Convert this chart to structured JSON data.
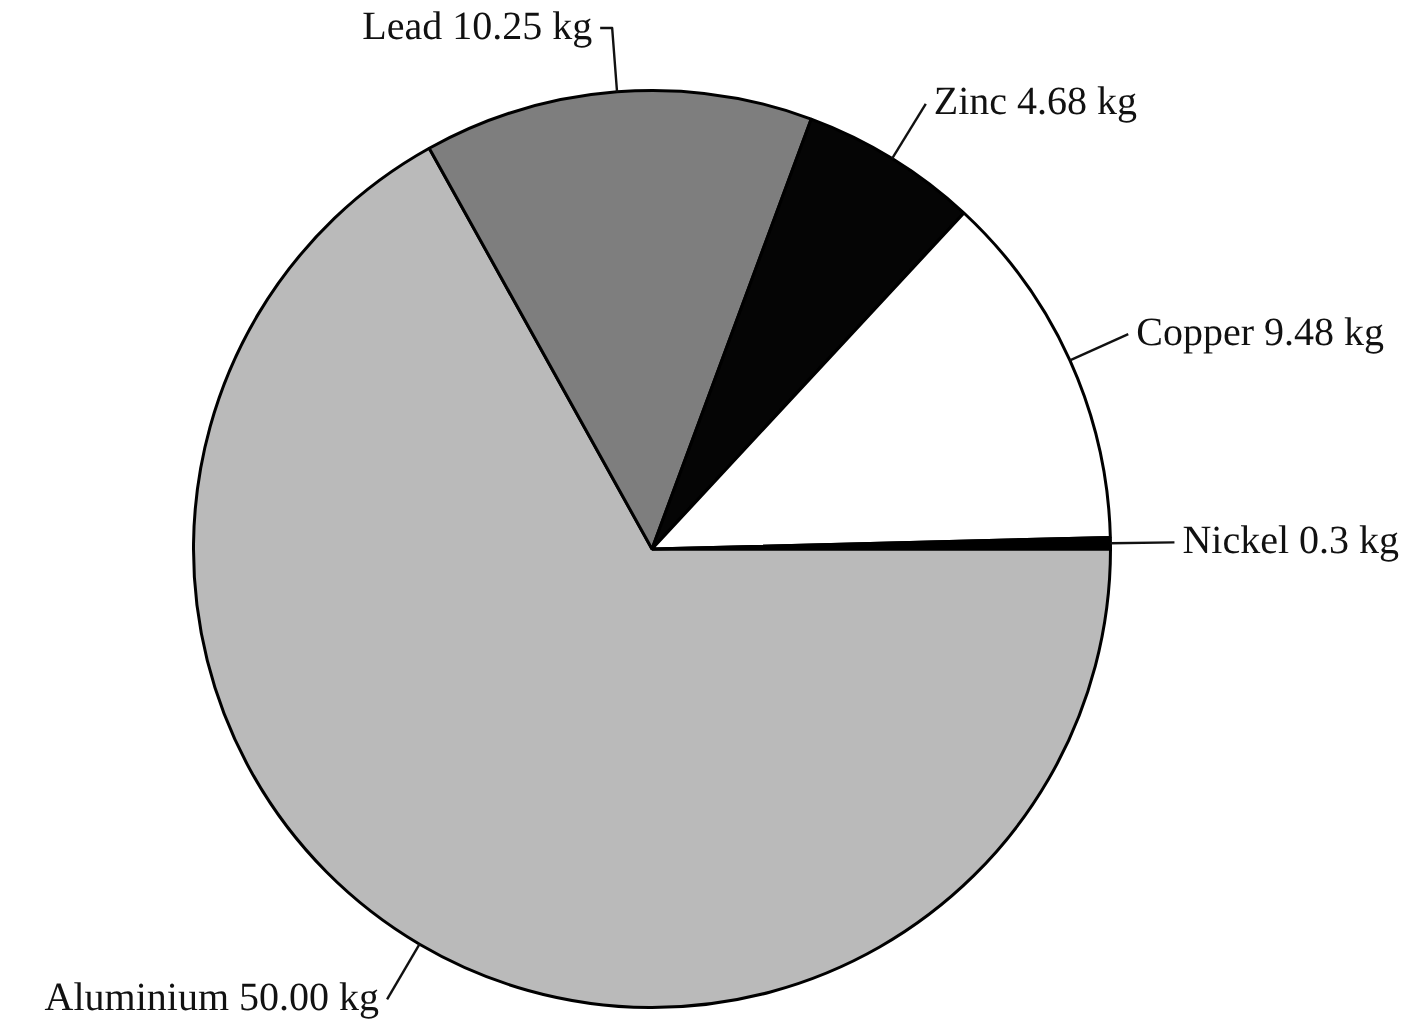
{
  "chart_data": {
    "type": "pie",
    "categories": [
      "Aluminium",
      "Lead",
      "Zinc",
      "Copper",
      "Nickel"
    ],
    "values": [
      50.0,
      10.25,
      4.68,
      9.48,
      0.3
    ],
    "value_labels": [
      "50.00 kg",
      "10.25 kg",
      "4.68 kg",
      "9.48 kg",
      "0.3 kg"
    ],
    "colors": [
      "#bababa",
      "#7e7e7e",
      "#050505",
      "#ffffff",
      "#000000"
    ]
  }
}
